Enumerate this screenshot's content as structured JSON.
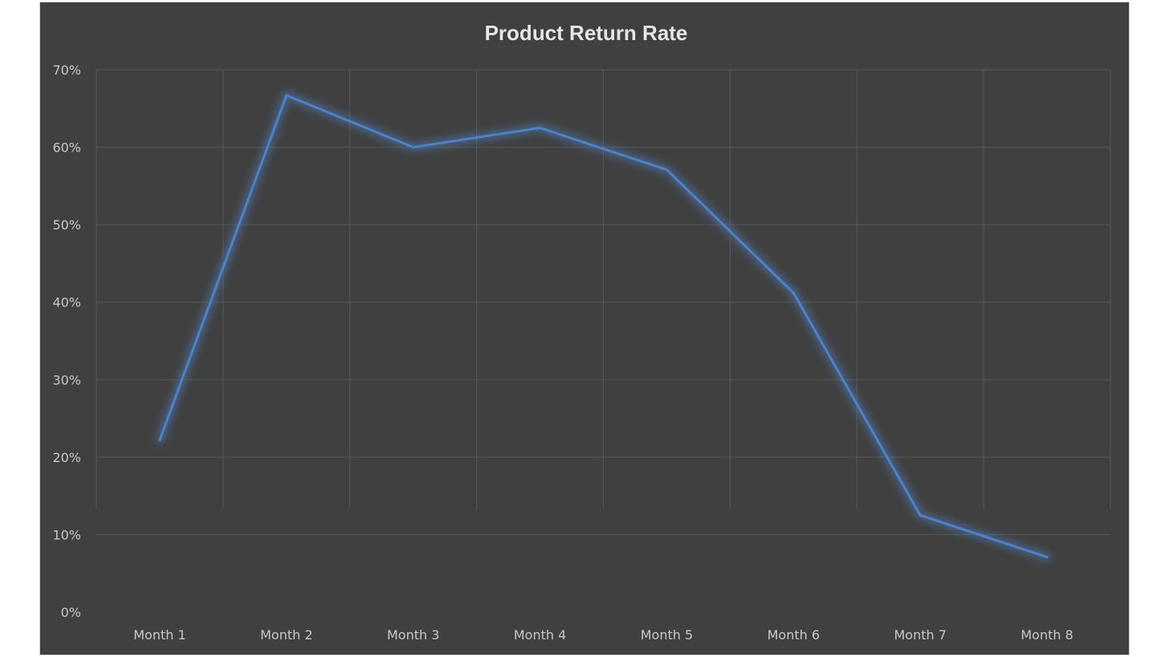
{
  "chart_data": {
    "type": "line",
    "title": "Product Return Rate",
    "xlabel": "",
    "ylabel": "",
    "categories": [
      "Month 1",
      "Month 2",
      "Month 3",
      "Month 4",
      "Month 5",
      "Month 6",
      "Month 7",
      "Month 8"
    ],
    "series": [
      {
        "values": [
          22.2,
          66.7,
          60.0,
          62.5,
          57.1,
          41.2,
          12.5,
          7.1
        ],
        "color": "#4f81c7"
      }
    ],
    "ylim": [
      0,
      70
    ],
    "yticks": [
      0,
      10,
      20,
      30,
      40,
      50,
      60,
      70
    ],
    "ytick_labels": [
      "0%",
      "10%",
      "20%",
      "30%",
      "40%",
      "50%",
      "60%",
      "70%"
    ],
    "grid": true,
    "legend": "none",
    "background": "#404040"
  }
}
